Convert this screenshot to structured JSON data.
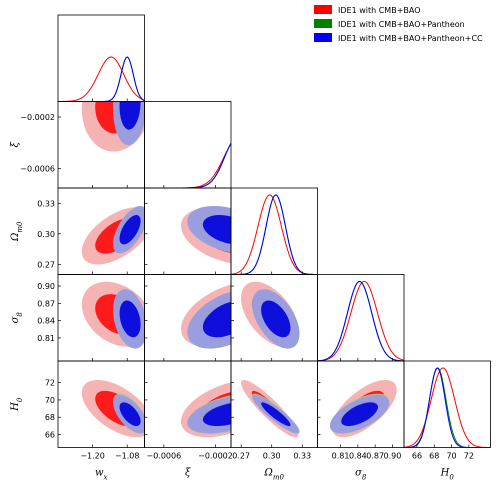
{
  "chart_data": {
    "type": "triangle-corner",
    "parameters": [
      {
        "key": "wx",
        "label": "w",
        "sub": "x",
        "range": [
          -1.32,
          -1.02
        ],
        "ticks": [
          -1.2,
          -1.08
        ],
        "tick_labels": [
          "−1.20",
          "−1.08"
        ]
      },
      {
        "key": "xi",
        "label": "ξ",
        "sub": "",
        "range": [
          -0.00075,
          -8e-05
        ],
        "ticks": [
          -0.0006,
          -0.0002
        ],
        "tick_labels": [
          "−0.0006",
          "−0.0002"
        ]
      },
      {
        "key": "om",
        "label": "Ω",
        "sub": "m0",
        "range": [
          0.26,
          0.345
        ],
        "ticks": [
          0.27,
          0.3,
          0.33
        ],
        "tick_labels": [
          "0.27",
          "0.30",
          "0.33"
        ]
      },
      {
        "key": "s8",
        "label": "σ",
        "sub": "8",
        "range": [
          0.77,
          0.92
        ],
        "ticks": [
          0.81,
          0.84,
          0.87,
          0.9
        ],
        "tick_labels": [
          "0.81",
          "0.84",
          "0.87",
          "0.90"
        ]
      },
      {
        "key": "h0",
        "label": "H",
        "sub": "0",
        "range": [
          64.5,
          74.5
        ],
        "ticks": [
          66,
          68,
          70,
          72
        ],
        "tick_labels": [
          "66",
          "68",
          "70",
          "72"
        ]
      }
    ],
    "legend": {
      "placement": "top-right",
      "entries": [
        {
          "label": "IDE1 with CMB+BAO",
          "color": "#ff0000"
        },
        {
          "label": "IDE1 with CMB+BAO+Pantheon",
          "color": "#008000"
        },
        {
          "label": "IDE1 with CMB+BAO+Pantheon+CC",
          "color": "#0000ff"
        }
      ]
    },
    "series": [
      {
        "name": "IDE1 with CMB+BAO",
        "color": "#ff0000",
        "fill_outer": "#f4a6a6",
        "fill_inner": "#ff0000",
        "means": {
          "wx": -1.115,
          "xi": -0.0001,
          "om": 0.298,
          "s8": 0.851,
          "h0": 69.0
        },
        "sigmas": {
          "wx": 0.05,
          "xi": 0.00015,
          "om": 0.0115,
          "s8": 0.023,
          "h0": 1.35
        },
        "correlations": {
          "wx|om": 0.55,
          "wx|s8": -0.3,
          "wx|h0": -0.55,
          "xi|om": -0.35,
          "xi|s8": 0.45,
          "xi|h0": 0.45,
          "om|s8": -0.5,
          "om|h0": -0.9,
          "s8|h0": 0.65,
          "wx|xi": 0.1
        }
      },
      {
        "name": "IDE1 with CMB+BAO+Pantheon",
        "color": "#008000",
        "fill_outer": "#99cc99",
        "fill_inner": "#008000",
        "means": {
          "wx": -1.07,
          "xi": -0.0001,
          "om": 0.304,
          "s8": 0.843,
          "h0": 68.4
        },
        "sigmas": {
          "wx": 0.024,
          "xi": 0.00013,
          "om": 0.0095,
          "s8": 0.021,
          "h0": 0.95
        },
        "correlations": {
          "wx|om": 0.6,
          "wx|s8": -0.3,
          "wx|h0": -0.6,
          "xi|om": -0.35,
          "xi|s8": 0.45,
          "xi|h0": 0.45,
          "om|s8": -0.5,
          "om|h0": -0.9,
          "s8|h0": 0.6,
          "wx|xi": 0.1
        }
      },
      {
        "name": "IDE1 with CMB+BAO+Pantheon+CC",
        "color": "#0000ff",
        "fill_outer": "#9999e6",
        "fill_inner": "#0000dd",
        "means": {
          "wx": -1.07,
          "xi": -0.0001,
          "om": 0.304,
          "s8": 0.843,
          "h0": 68.35
        },
        "sigmas": {
          "wx": 0.024,
          "xi": 0.00013,
          "om": 0.0095,
          "s8": 0.021,
          "h0": 0.9
        },
        "correlations": {
          "wx|om": 0.6,
          "wx|s8": -0.3,
          "wx|h0": -0.6,
          "xi|om": -0.35,
          "xi|s8": 0.45,
          "xi|h0": 0.45,
          "om|s8": -0.5,
          "om|h0": -0.9,
          "s8|h0": 0.6,
          "wx|xi": 0.1
        }
      }
    ],
    "contour_levels": [
      "68%",
      "95%"
    ]
  }
}
